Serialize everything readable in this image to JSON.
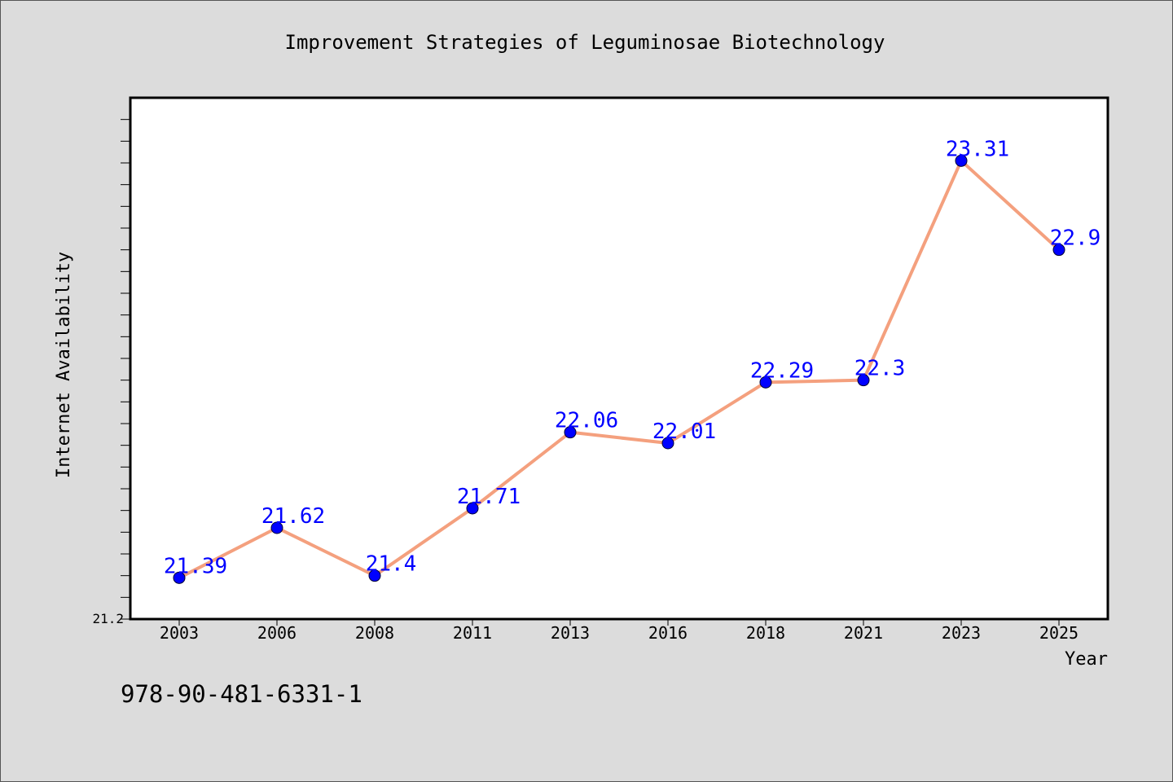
{
  "chart_data": {
    "type": "line",
    "title": "Improvement Strategies of Leguminosae Biotechnology",
    "xlabel": "Year",
    "ylabel": "Internet Availability",
    "categories": [
      "2003",
      "2006",
      "2008",
      "2011",
      "2013",
      "2016",
      "2018",
      "2021",
      "2023",
      "2025"
    ],
    "series": [
      {
        "values": [
          21.39,
          21.62,
          21.4,
          21.71,
          22.06,
          22.01,
          22.29,
          22.3,
          23.31,
          22.9
        ],
        "data_labels": [
          "21.39",
          "21.62",
          "21.4",
          "21.71",
          "22.06",
          "22.01",
          "22.29",
          "22.3",
          "23.31",
          "22.9"
        ],
        "line_color": "#f4a07e",
        "marker_color": "#0000ff"
      }
    ],
    "ylim": [
      21.2,
      23.6
    ],
    "y_tick_labels": [
      "21.2"
    ],
    "grid": false,
    "legend": "none",
    "plot_background": "#ffffff",
    "label_color": "#0000ff"
  },
  "footer_text": "978-90-481-6331-1"
}
